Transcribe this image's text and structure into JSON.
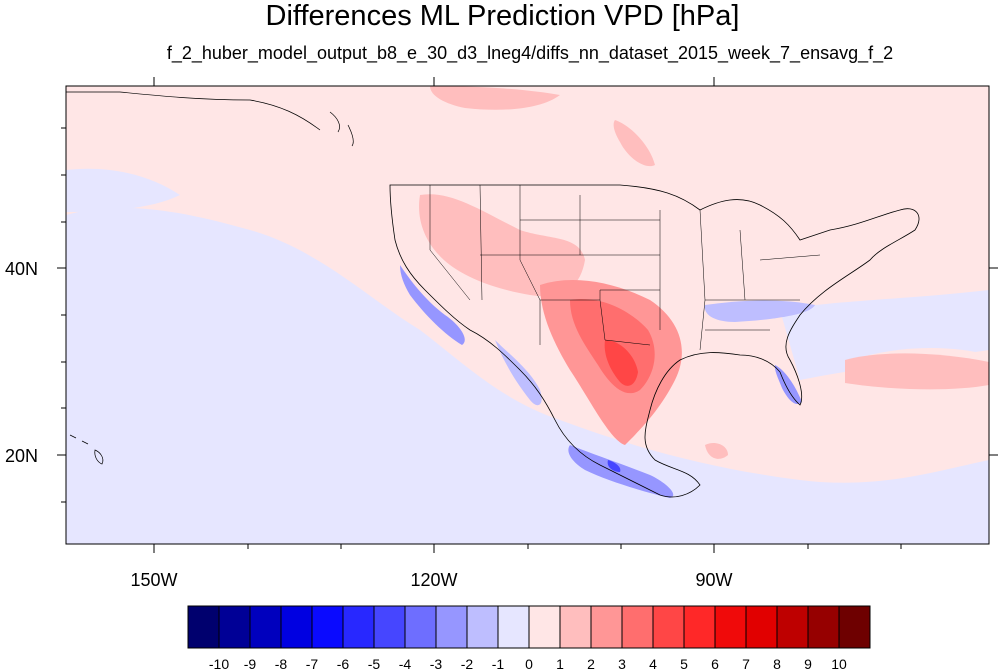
{
  "title": "Differences ML Prediction VPD [hPa]",
  "subtitle": "f_2_huber_model_output_b8_e_30_d3_lneg4/diffs_nn_dataset_2015_week_7_ensavg_f_2",
  "lon_ticks": [
    {
      "label": "150W"
    },
    {
      "label": "120W"
    },
    {
      "label": "90W"
    }
  ],
  "lat_ticks": [
    {
      "label": "40N"
    },
    {
      "label": "20N"
    }
  ],
  "colorbar": {
    "levels": [
      "-10",
      "-9",
      "-8",
      "-7",
      "-6",
      "-5",
      "-4",
      "-3",
      "-2",
      "-1",
      "0",
      "1",
      "2",
      "3",
      "4",
      "5",
      "6",
      "7",
      "8",
      "9",
      "10"
    ],
    "colors": [
      "#00006e",
      "#000096",
      "#0000be",
      "#0000e1",
      "#0a0aff",
      "#2828ff",
      "#4646ff",
      "#6e6eff",
      "#9696ff",
      "#bebeff",
      "#e6e6ff",
      "#ffe6e6",
      "#ffbebe",
      "#ff9696",
      "#ff6e6e",
      "#ff4646",
      "#ff2828",
      "#f00a0a",
      "#e10000",
      "#be0000",
      "#960000",
      "#6e0000"
    ]
  },
  "colors": {
    "background_positive": "#ffe6e6",
    "background_negative": "#e6e6ff"
  }
}
